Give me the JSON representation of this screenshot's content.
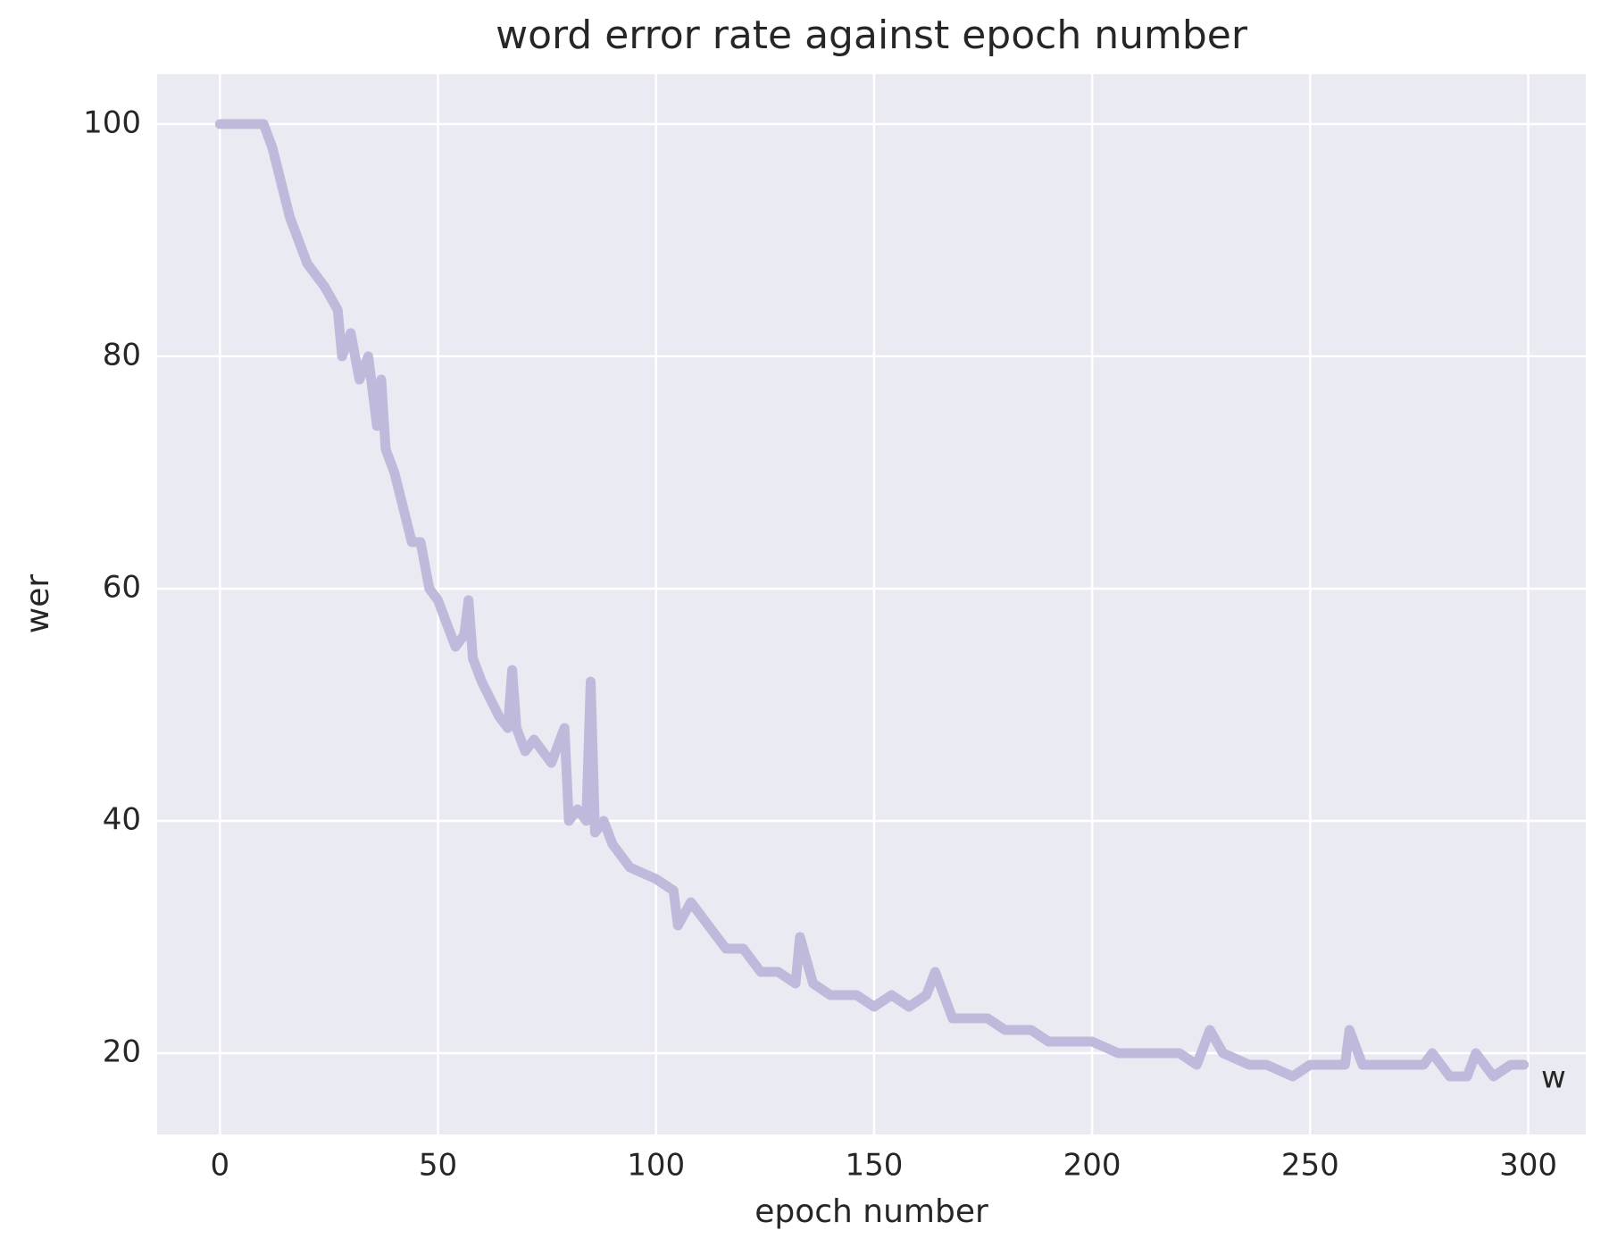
{
  "chart_data": {
    "type": "line",
    "title": "word error rate against epoch number",
    "xlabel": "epoch number",
    "ylabel": "wer",
    "x": [
      0,
      10,
      12,
      16,
      20,
      24,
      27,
      28,
      30,
      32,
      34,
      36,
      37,
      38,
      40,
      44,
      46,
      48,
      50,
      54,
      56,
      57,
      58,
      60,
      64,
      66,
      67,
      68,
      70,
      72,
      76,
      79,
      80,
      82,
      84,
      85,
      86,
      88,
      90,
      94,
      100,
      104,
      105,
      108,
      112,
      116,
      120,
      124,
      128,
      132,
      133,
      136,
      140,
      146,
      150,
      154,
      158,
      162,
      164,
      168,
      172,
      176,
      180,
      186,
      190,
      196,
      200,
      206,
      210,
      216,
      220,
      224,
      227,
      230,
      236,
      240,
      246,
      250,
      254,
      258,
      259,
      262,
      268,
      272,
      276,
      278,
      282,
      286,
      288,
      292,
      296,
      299
    ],
    "series": [
      {
        "name": "w",
        "color": "#bfbadb",
        "values": [
          100,
          100,
          98,
          92,
          88,
          86,
          84,
          80,
          82,
          78,
          80,
          74,
          78,
          72,
          70,
          64,
          64,
          60,
          59,
          55,
          56,
          59,
          54,
          52,
          49,
          48,
          53,
          48,
          46,
          47,
          45,
          48,
          40,
          41,
          40,
          52,
          39,
          40,
          38,
          36,
          35,
          34,
          31,
          33,
          31,
          29,
          29,
          27,
          27,
          26,
          30,
          26,
          25,
          25,
          24,
          25,
          24,
          25,
          27,
          23,
          23,
          23,
          22,
          22,
          21,
          21,
          21,
          20,
          20,
          20,
          20,
          19,
          22,
          20,
          19,
          19,
          18,
          19,
          19,
          19,
          22,
          19,
          19,
          19,
          19,
          20,
          18,
          18,
          20,
          18,
          19,
          19
        ]
      }
    ],
    "xlim": [
      -14.4,
      313.2
    ],
    "xticks": [
      0,
      50,
      100,
      150,
      200,
      250,
      300
    ],
    "ylim": [
      13.0,
      104.3
    ],
    "yticks": [
      20,
      40,
      60,
      80,
      100
    ],
    "grid": true,
    "legend": "lower right"
  }
}
